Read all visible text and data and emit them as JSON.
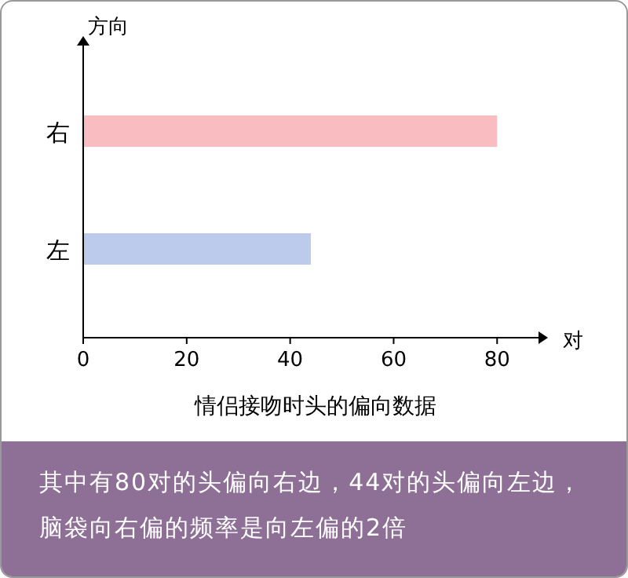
{
  "chart_data": {
    "type": "bar",
    "orientation": "horizontal",
    "categories": [
      "右",
      "左"
    ],
    "colors": [
      "#f9bcc1",
      "#bccbeb"
    ],
    "values": [
      80,
      44
    ],
    "xlim": [
      0,
      88
    ],
    "xticks": [
      0,
      20,
      40,
      60,
      80
    ],
    "ylabel": "方向",
    "xlabel": "对",
    "title": "情侣接吻时头的偏向数据",
    "annotations": [
      "其中有80对的头偏向右边，44对的头偏向左边，脑袋向右偏的频率是向左偏的2倍"
    ]
  }
}
